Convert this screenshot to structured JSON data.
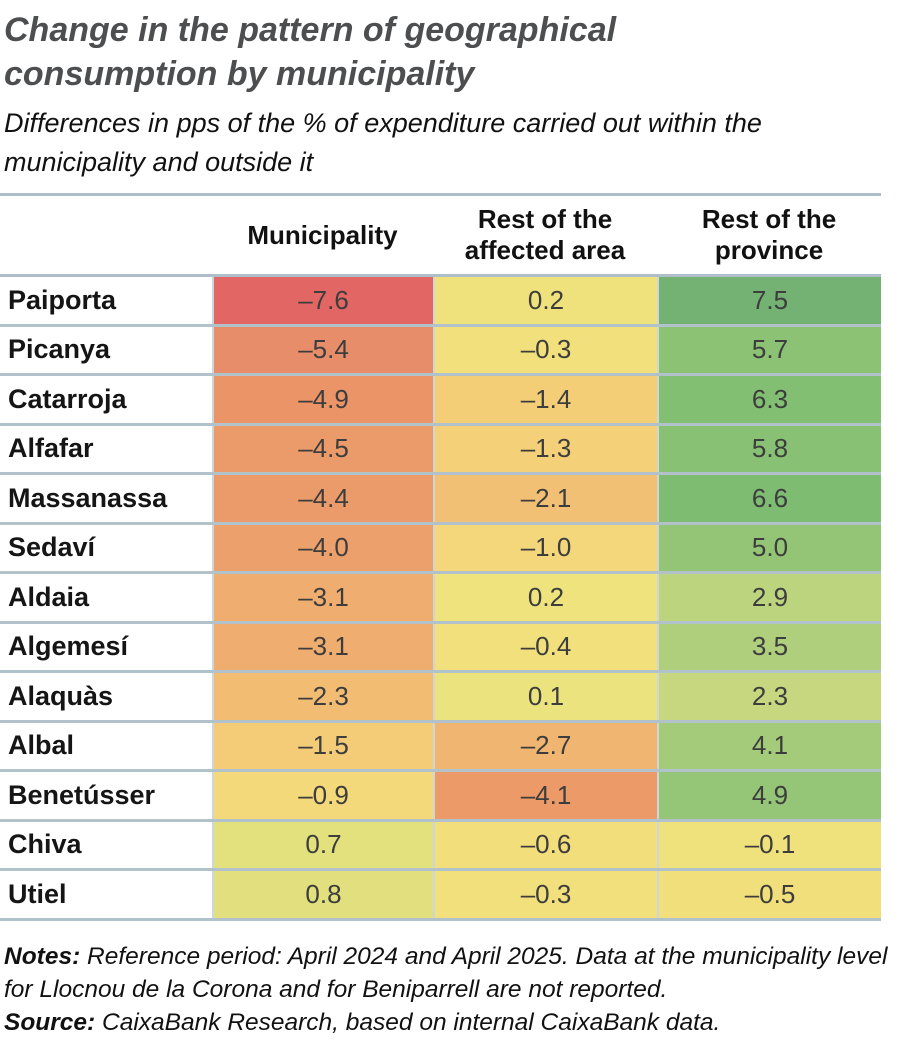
{
  "header": {
    "title": "Change in the pattern of geographical\nconsumption by municipality",
    "subtitle": "Differences in pps of the % of expenditure carried out within the\nmunicipality and outside it"
  },
  "table": {
    "row_header_label": "",
    "columns": [
      "Municipality",
      "Rest of the\naffected area",
      "Rest of the\nprovince"
    ]
  },
  "chart_data": {
    "type": "heatmap",
    "title": "Change in the pattern of geographical consumption by municipality",
    "subtitle": "Differences in pps of the % of expenditure carried out within the municipality and outside it",
    "unit": "pps",
    "colormap": "red-yellow-green",
    "value_range": [
      -7.6,
      7.5
    ],
    "columns": [
      "Municipality",
      "Rest of the affected area",
      "Rest of the province"
    ],
    "rows": [
      {
        "name": "Paiporta",
        "values": [
          -7.6,
          0.2,
          7.5
        ],
        "display": [
          "–7.6",
          "0.2",
          "7.5"
        ],
        "colors": [
          "#e26663",
          "#efe17c",
          "#74b273"
        ]
      },
      {
        "name": "Picanya",
        "values": [
          -5.4,
          -0.3,
          5.7
        ],
        "display": [
          "–5.4",
          "–0.3",
          "5.7"
        ],
        "colors": [
          "#e88d6a",
          "#f1e07c",
          "#8bc274"
        ]
      },
      {
        "name": "Catarroja",
        "values": [
          -4.9,
          -1.4,
          6.3
        ],
        "display": [
          "–4.9",
          "–1.4",
          "6.3"
        ],
        "colors": [
          "#ea9468",
          "#f4ce77",
          "#83bf73"
        ]
      },
      {
        "name": "Alfafar",
        "values": [
          -4.5,
          -1.3,
          5.8
        ],
        "display": [
          "–4.5",
          "–1.3",
          "5.8"
        ],
        "colors": [
          "#eb9a6a",
          "#f4d078",
          "#89c174"
        ]
      },
      {
        "name": "Massanassa",
        "values": [
          -4.4,
          -2.1,
          6.6
        ],
        "display": [
          "–4.4",
          "–2.1",
          "6.6"
        ],
        "colors": [
          "#eb9b6a",
          "#f2c074",
          "#7ebc72"
        ]
      },
      {
        "name": "Sedaví",
        "values": [
          -4.0,
          -1.0,
          5.0
        ],
        "display": [
          "–4.0",
          "–1.0",
          "5.0"
        ],
        "colors": [
          "#eca16c",
          "#f3d77a",
          "#94c576"
        ]
      },
      {
        "name": "Aldaia",
        "values": [
          -3.1,
          0.2,
          2.9
        ],
        "display": [
          "–3.1",
          "0.2",
          "2.9"
        ],
        "colors": [
          "#efae6f",
          "#eee37d",
          "#bcd47e"
        ]
      },
      {
        "name": "Algemesí",
        "values": [
          -3.1,
          -0.4,
          3.5
        ],
        "display": [
          "–3.1",
          "–0.4",
          "3.5"
        ],
        "colors": [
          "#efae6f",
          "#f1e07c",
          "#b0cf7c"
        ]
      },
      {
        "name": "Alaquàs",
        "values": [
          -2.3,
          0.1,
          2.3
        ],
        "display": [
          "–2.3",
          "0.1",
          "2.3"
        ],
        "colors": [
          "#f2bc73",
          "#ebe37d",
          "#c6d780"
        ]
      },
      {
        "name": "Albal",
        "values": [
          -1.5,
          -2.7,
          4.1
        ],
        "display": [
          "–1.5",
          "–2.7",
          "4.1"
        ],
        "colors": [
          "#f4cc77",
          "#f0b571",
          "#a4cb7a"
        ]
      },
      {
        "name": "Benetússer",
        "values": [
          -0.9,
          -4.1,
          4.9
        ],
        "display": [
          "–0.9",
          "–4.1",
          "4.9"
        ],
        "colors": [
          "#f3d97a",
          "#ec9a67",
          "#95c576"
        ]
      },
      {
        "name": "Chiva",
        "values": [
          0.7,
          -0.6,
          -0.1
        ],
        "display": [
          "0.7",
          "–0.6",
          "–0.1"
        ],
        "colors": [
          "#e3e07e",
          "#f2de7b",
          "#efe27d"
        ]
      },
      {
        "name": "Utiel",
        "values": [
          0.8,
          -0.3,
          -0.5
        ],
        "display": [
          "0.8",
          "–0.3",
          "–0.5"
        ],
        "colors": [
          "#e1df7e",
          "#f1e07c",
          "#f1df7b"
        ]
      }
    ]
  },
  "notes": {
    "notes_label": "Notes:",
    "notes_text": " Reference period: April 2024 and April 2025. Data at the municipality level for Llocnou de la Corona and for Beniparrell are not reported.",
    "source_label": "Source:",
    "source_text": " CaixaBank Research, based on internal CaixaBank data."
  },
  "style": {
    "title_color": "#4d4e50",
    "rule_color": "#aebfc9",
    "row_separator_color": "#b2c2cb",
    "negative_extreme_color": "#e26663",
    "neutral_color": "#efe17c",
    "positive_extreme_color": "#74b273"
  }
}
